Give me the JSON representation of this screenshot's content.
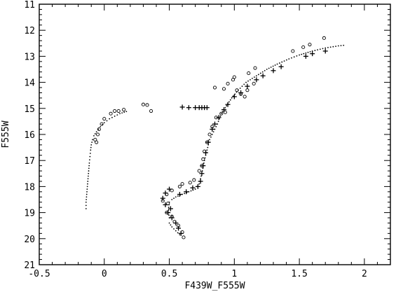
{
  "chart_data": {
    "type": "scatter",
    "title": "",
    "xlabel": "F439W_F555W",
    "ylabel": "F555W",
    "xlim": [
      -0.5,
      2.2
    ],
    "ylim": [
      21,
      11
    ],
    "y_inverted": true,
    "grid": false,
    "legend": "none",
    "x_ticks": [
      -0.5,
      0,
      0.5,
      1,
      1.5,
      2
    ],
    "x_tick_labels": [
      "-0.5",
      "0",
      "0.5",
      "1",
      "1.5",
      "2"
    ],
    "y_ticks": [
      11,
      12,
      13,
      14,
      15,
      16,
      17,
      18,
      19,
      20,
      21
    ],
    "y_tick_labels": [
      "11",
      "12",
      "13",
      "14",
      "15",
      "16",
      "17",
      "18",
      "19",
      "20",
      "21"
    ],
    "series": [
      {
        "marker": "dotted-line",
        "points": [
          [
            -0.14,
            18.85
          ],
          [
            -0.14,
            18.6
          ],
          [
            -0.135,
            18.3
          ],
          [
            -0.13,
            18.0
          ],
          [
            -0.125,
            17.7
          ],
          [
            -0.12,
            17.4
          ],
          [
            -0.115,
            17.1
          ],
          [
            -0.11,
            16.85
          ],
          [
            -0.105,
            16.6
          ],
          [
            -0.1,
            16.4
          ],
          [
            -0.09,
            16.2
          ],
          [
            -0.08,
            16.05
          ],
          [
            -0.06,
            15.9
          ],
          [
            -0.03,
            15.7
          ],
          [
            0.0,
            15.55
          ],
          [
            0.04,
            15.4
          ],
          [
            0.08,
            15.3
          ],
          [
            0.12,
            15.2
          ],
          [
            0.17,
            15.12
          ],
          [
            0.5,
            19.2
          ],
          [
            0.495,
            19.0
          ],
          [
            0.495,
            18.8
          ],
          [
            0.5,
            18.6
          ],
          [
            0.52,
            18.5
          ],
          [
            0.55,
            18.4
          ],
          [
            0.6,
            18.3
          ],
          [
            0.65,
            18.2
          ],
          [
            0.7,
            18.1
          ],
          [
            0.73,
            17.9
          ],
          [
            0.75,
            17.5
          ],
          [
            0.77,
            17.0
          ],
          [
            0.79,
            16.6
          ],
          [
            0.81,
            16.2
          ],
          [
            0.84,
            15.9
          ],
          [
            0.87,
            15.6
          ],
          [
            0.9,
            15.2
          ],
          [
            0.94,
            14.9
          ],
          [
            0.98,
            14.6
          ],
          [
            1.03,
            14.3
          ],
          [
            1.09,
            14.0
          ],
          [
            1.17,
            13.75
          ],
          [
            1.25,
            13.5
          ],
          [
            1.33,
            13.3
          ],
          [
            1.42,
            13.1
          ],
          [
            1.5,
            12.95
          ],
          [
            1.6,
            12.8
          ],
          [
            1.7,
            12.68
          ],
          [
            1.8,
            12.6
          ],
          [
            1.84,
            12.58
          ],
          [
            0.5,
            19.4
          ],
          [
            0.52,
            19.55
          ],
          [
            0.55,
            19.7
          ],
          [
            0.58,
            19.85
          ]
        ]
      },
      {
        "marker": "plus",
        "points": [
          [
            0.6,
            14.95
          ],
          [
            0.65,
            14.97
          ],
          [
            0.7,
            14.97
          ],
          [
            0.73,
            14.97
          ],
          [
            0.75,
            14.97
          ],
          [
            0.77,
            14.97
          ],
          [
            0.79,
            14.97
          ],
          [
            1.0,
            14.55
          ],
          [
            1.05,
            14.4
          ],
          [
            1.1,
            14.15
          ],
          [
            1.17,
            13.9
          ],
          [
            1.22,
            13.75
          ],
          [
            1.3,
            13.55
          ],
          [
            1.36,
            13.4
          ],
          [
            1.55,
            13.0
          ],
          [
            1.6,
            12.9
          ],
          [
            1.7,
            12.8
          ],
          [
            0.92,
            15.05
          ],
          [
            0.95,
            14.85
          ],
          [
            0.88,
            15.35
          ],
          [
            0.85,
            15.6
          ],
          [
            0.83,
            15.8
          ],
          [
            0.8,
            16.3
          ],
          [
            0.78,
            16.7
          ],
          [
            0.76,
            17.2
          ],
          [
            0.75,
            17.5
          ],
          [
            0.74,
            17.8
          ],
          [
            0.72,
            18.0
          ],
          [
            0.68,
            18.05
          ],
          [
            0.63,
            18.2
          ],
          [
            0.58,
            18.3
          ],
          [
            0.5,
            18.1
          ],
          [
            0.47,
            18.25
          ],
          [
            0.45,
            18.45
          ],
          [
            0.47,
            18.7
          ],
          [
            0.51,
            18.85
          ],
          [
            0.49,
            19.0
          ],
          [
            0.52,
            19.2
          ],
          [
            0.55,
            19.4
          ],
          [
            0.57,
            19.6
          ],
          [
            0.59,
            19.8
          ]
        ]
      },
      {
        "marker": "circle",
        "points": [
          [
            -0.06,
            16.3
          ],
          [
            -0.07,
            16.2
          ],
          [
            -0.05,
            16.0
          ],
          [
            -0.04,
            15.8
          ],
          [
            -0.02,
            15.6
          ],
          [
            0.0,
            15.4
          ],
          [
            0.05,
            15.2
          ],
          [
            0.08,
            15.1
          ],
          [
            0.11,
            15.1
          ],
          [
            0.15,
            15.05
          ],
          [
            0.3,
            14.85
          ],
          [
            0.33,
            14.87
          ],
          [
            0.36,
            15.1
          ],
          [
            0.85,
            14.2
          ],
          [
            0.92,
            14.25
          ],
          [
            0.95,
            14.05
          ],
          [
            0.99,
            13.9
          ],
          [
            1.02,
            14.3
          ],
          [
            1.05,
            14.45
          ],
          [
            1.08,
            14.55
          ],
          [
            1.1,
            14.3
          ],
          [
            1.15,
            14.05
          ],
          [
            1.16,
            13.45
          ],
          [
            1.11,
            13.65
          ],
          [
            1.0,
            13.8
          ],
          [
            1.45,
            12.8
          ],
          [
            1.53,
            12.65
          ],
          [
            1.58,
            12.55
          ],
          [
            1.69,
            12.3
          ],
          [
            0.9,
            15.2
          ],
          [
            0.93,
            15.15
          ],
          [
            0.86,
            15.35
          ],
          [
            0.83,
            15.7
          ],
          [
            0.81,
            16.0
          ],
          [
            0.79,
            16.3
          ],
          [
            0.77,
            16.65
          ],
          [
            0.76,
            16.95
          ],
          [
            0.75,
            17.2
          ],
          [
            0.73,
            17.4
          ],
          [
            0.69,
            17.75
          ],
          [
            0.66,
            17.85
          ],
          [
            0.6,
            17.9
          ],
          [
            0.58,
            18.0
          ],
          [
            0.52,
            18.15
          ],
          [
            0.48,
            18.3
          ],
          [
            0.45,
            18.55
          ],
          [
            0.49,
            18.65
          ],
          [
            0.48,
            19.0
          ],
          [
            0.52,
            19.15
          ],
          [
            0.54,
            19.35
          ],
          [
            0.57,
            19.5
          ],
          [
            0.6,
            19.75
          ],
          [
            0.61,
            19.95
          ]
        ]
      }
    ]
  }
}
